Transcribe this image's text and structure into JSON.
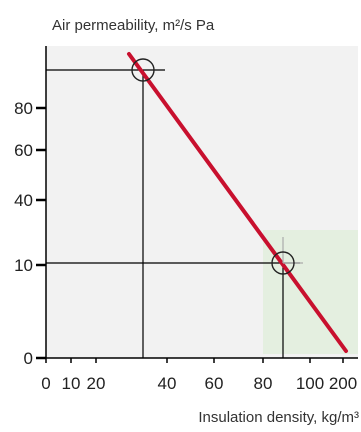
{
  "chart_data": {
    "type": "line",
    "ylabel": "Air permeability, m²/s Pa",
    "xlabel": "Insulation density, kg/m³",
    "x_ticks": [
      "0",
      "10",
      "20",
      "40",
      "60",
      "80",
      "100",
      "200"
    ],
    "y_ticks": [
      "0",
      "10",
      "40",
      "60",
      "80"
    ],
    "series": [
      {
        "values": [
          [
            20,
            125
          ],
          [
            200,
            0
          ]
        ]
      }
    ],
    "reference_points": [
      {
        "x": 30,
        "y": 120
      },
      {
        "x": 90,
        "y": 10
      }
    ],
    "shaded_region": {
      "x": [
        80,
        200
      ],
      "y": [
        0,
        40
      ]
    },
    "grid": false
  },
  "colors": {
    "plot_background": "#f2f2f2",
    "line": "#c8102e",
    "shaded_region": "#e4efe0",
    "axis": "#000000",
    "marker_gray": "#aaaaaa"
  }
}
